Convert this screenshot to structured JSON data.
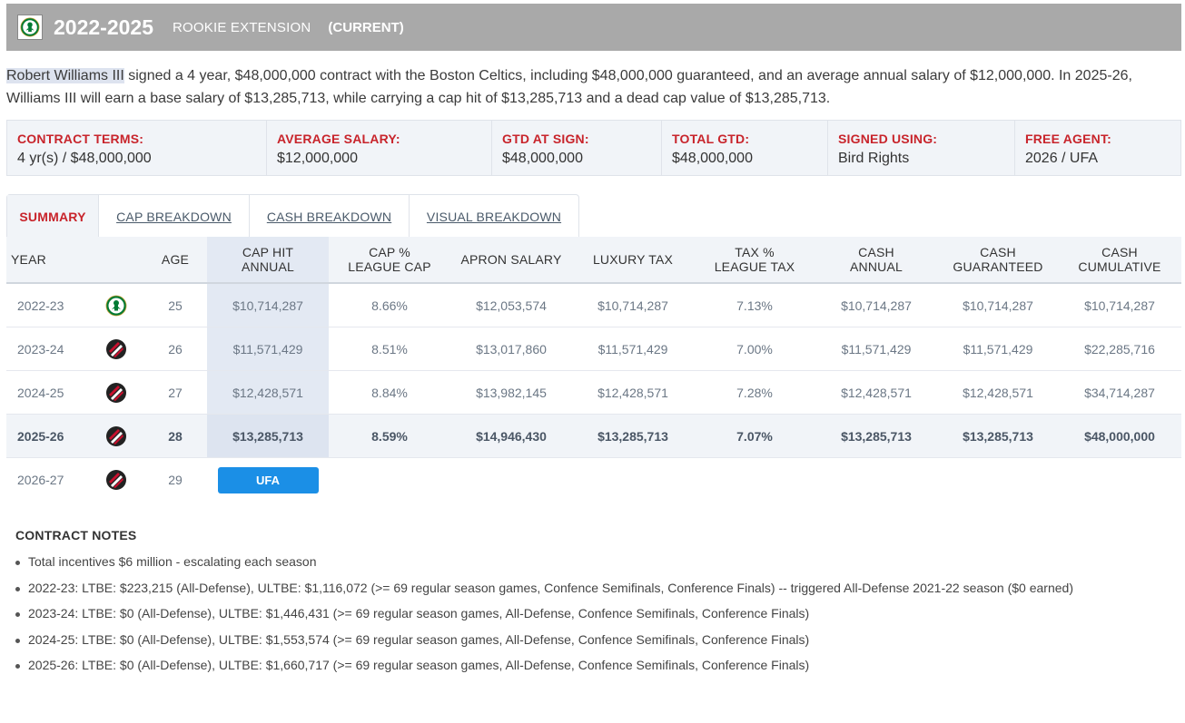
{
  "header": {
    "years": "2022-2025",
    "type": "ROOKIE EXTENSION",
    "status": "(CURRENT)"
  },
  "summary": {
    "player_name": "Robert Williams III",
    "text": " signed a 4 year, $48,000,000 contract with the Boston Celtics, including $48,000,000 guaranteed, and an average annual salary of $12,000,000. In 2025-26, Williams III will earn a base salary of $13,285,713, while carrying a cap hit of $13,285,713 and a dead cap value of $13,285,713."
  },
  "terms": [
    {
      "label": "CONTRACT TERMS:",
      "value": "4 yr(s) / $48,000,000"
    },
    {
      "label": "AVERAGE SALARY:",
      "value": "$12,000,000"
    },
    {
      "label": "GTD AT SIGN:",
      "value": "$48,000,000"
    },
    {
      "label": "TOTAL GTD:",
      "value": "$48,000,000"
    },
    {
      "label": "SIGNED USING:",
      "value": "Bird Rights"
    },
    {
      "label": "FREE AGENT:",
      "value": "2026 / UFA"
    }
  ],
  "tabs": [
    {
      "label": "SUMMARY",
      "active": true
    },
    {
      "label": "CAP BREAKDOWN",
      "active": false
    },
    {
      "label": "CASH BREAKDOWN",
      "active": false
    },
    {
      "label": "VISUAL BREAKDOWN",
      "active": false
    }
  ],
  "table": {
    "headers": {
      "year": "YEAR",
      "age": "AGE",
      "cap_hit_1": "CAP HIT",
      "cap_hit_2": "ANNUAL",
      "cap_pct_1": "CAP %",
      "cap_pct_2": "LEAGUE CAP",
      "apron": "APRON SALARY",
      "luxury": "LUXURY TAX",
      "tax_pct_1": "TAX %",
      "tax_pct_2": "LEAGUE TAX",
      "cash_1": "CASH",
      "cash_2": "ANNUAL",
      "cashg_1": "CASH",
      "cashg_2": "GUARANTEED",
      "cashc_1": "CASH",
      "cashc_2": "CUMULATIVE"
    },
    "rows": [
      {
        "year": "2022-23",
        "team": "celtics",
        "age": "25",
        "cap_hit": "$10,714,287",
        "cap_pct": "8.66%",
        "apron": "$12,053,574",
        "luxury": "$10,714,287",
        "tax_pct": "7.13%",
        "cash": "$10,714,287",
        "cash_gtd": "$10,714,287",
        "cash_cum": "$10,714,287"
      },
      {
        "year": "2023-24",
        "team": "blazers",
        "age": "26",
        "cap_hit": "$11,571,429",
        "cap_pct": "8.51%",
        "apron": "$13,017,860",
        "luxury": "$11,571,429",
        "tax_pct": "7.00%",
        "cash": "$11,571,429",
        "cash_gtd": "$11,571,429",
        "cash_cum": "$22,285,716"
      },
      {
        "year": "2024-25",
        "team": "blazers",
        "age": "27",
        "cap_hit": "$12,428,571",
        "cap_pct": "8.84%",
        "apron": "$13,982,145",
        "luxury": "$12,428,571",
        "tax_pct": "7.28%",
        "cash": "$12,428,571",
        "cash_gtd": "$12,428,571",
        "cash_cum": "$34,714,287"
      },
      {
        "year": "2025-26",
        "team": "blazers",
        "age": "28",
        "cap_hit": "$13,285,713",
        "cap_pct": "8.59%",
        "apron": "$14,946,430",
        "luxury": "$13,285,713",
        "tax_pct": "7.07%",
        "cash": "$13,285,713",
        "cash_gtd": "$13,285,713",
        "cash_cum": "$48,000,000"
      }
    ],
    "fa_row": {
      "year": "2026-27",
      "team": "blazers",
      "age": "29",
      "badge": "UFA"
    }
  },
  "notes": {
    "title": "CONTRACT NOTES",
    "items": [
      "Total incentives $6 million - escalating each season",
      "2022-23: LTBE: $223,215 (All-Defense), ULTBE: $1,116,072 (>= 69 regular season games, Confence Semifinals, Conference Finals) -- triggered All-Defense 2021-22 season ($0 earned)",
      "2023-24: LTBE: $0 (All-Defense), ULTBE: $1,446,431 (>= 69 regular season games, All-Defense, Confence Semifinals, Conference Finals)",
      "2024-25: LTBE: $0  (All-Defense), ULTBE: $1,553,574  (>= 69 regular season games, All-Defense, Confence Semifinals, Conference Finals)",
      "2025-26: LTBE: $0  (All-Defense), ULTBE: $1,660,717  (>= 69 regular season games, All-Defense, Confence Semifinals, Conference Finals)"
    ]
  },
  "colors": {
    "header_bg": "#a9a9a9",
    "accent_red": "#c8242b",
    "ufa_blue": "#1b8fe6",
    "celtics_green": "#007a33",
    "blazers_red": "#c8102e"
  }
}
